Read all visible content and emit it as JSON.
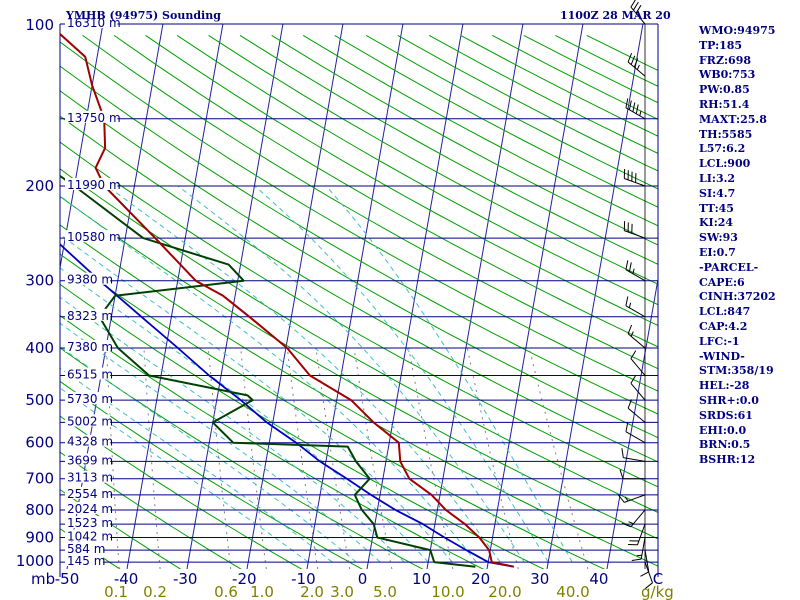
{
  "header": {
    "station_title": "YMHB (94975) Sounding",
    "time_label": "1100Z 28 MAR 20"
  },
  "indices": [
    "WMO:94975",
    "TP:185",
    "FRZ:698",
    "WB0:753",
    "PW:0.85",
    "RH:51.4",
    "MAXT:25.8",
    "TH:5585",
    "L57:6.2",
    "LCL:900",
    "LI:3.2",
    "SI:4.7",
    "TT:45",
    "KI:24",
    "SW:93",
    "EI:0.7",
    "-PARCEL-",
    "CAPE:6",
    "CINH:37202",
    "LCL:847",
    "CAP:4.2",
    "LFC:-1",
    "-WIND-",
    "STM:358/19",
    "HEL:-28",
    "SHR+:0.0",
    "SRDS:61",
    "EHI:0.0",
    "BRN:0.5",
    "BSHR:12"
  ],
  "colors": {
    "isobar": "#000080",
    "isotherm": "#2020a0",
    "dry_adiabat": "#00a000",
    "moist_adiabat": "#40c0c0",
    "mixing_ratio": "#808080",
    "temperature": "#a00000",
    "dewpoint": "#004000",
    "parcel": "#0000c0",
    "wind": "#000000"
  },
  "chart_data": {
    "type": "skew-t",
    "pressure_unit": "mb",
    "temperature_unit": "C",
    "mixing_ratio_unit": "g/kg",
    "pressure_levels": [
      {
        "p": 100,
        "label": "100"
      },
      {
        "p": 200,
        "label": "200"
      },
      {
        "p": 300,
        "label": "300"
      },
      {
        "p": 400,
        "label": "400"
      },
      {
        "p": 500,
        "label": "500"
      },
      {
        "p": 600,
        "label": "600"
      },
      {
        "p": 700,
        "label": "700"
      },
      {
        "p": 800,
        "label": "800"
      },
      {
        "p": 900,
        "label": "900"
      },
      {
        "p": 1000,
        "label": "1000"
      }
    ],
    "height_labels": [
      {
        "p": 100,
        "label": "16310 m"
      },
      {
        "p": 150,
        "label": "13750 m"
      },
      {
        "p": 200,
        "label": "11990 m"
      },
      {
        "p": 250,
        "label": "10580 m"
      },
      {
        "p": 300,
        "label": "9380 m"
      },
      {
        "p": 350,
        "label": "8323 m"
      },
      {
        "p": 400,
        "label": "7380 m"
      },
      {
        "p": 450,
        "label": "6515 m"
      },
      {
        "p": 500,
        "label": "5730 m"
      },
      {
        "p": 550,
        "label": "5002 m"
      },
      {
        "p": 600,
        "label": "4328 m"
      },
      {
        "p": 650,
        "label": "3699 m"
      },
      {
        "p": 700,
        "label": "3113 m"
      },
      {
        "p": 750,
        "label": "2554 m"
      },
      {
        "p": 800,
        "label": "2024 m"
      },
      {
        "p": 850,
        "label": "1523 m"
      },
      {
        "p": 900,
        "label": "1042 m"
      },
      {
        "p": 950,
        "label": "584 m"
      },
      {
        "p": 1000,
        "label": "145 m"
      }
    ],
    "temperature_ticks": [
      "-50",
      "-40",
      "-30",
      "-20",
      "-10",
      "0",
      "10",
      "20",
      "30",
      "40",
      "C"
    ],
    "mixing_ratio_ticks": [
      {
        "value": 0.1,
        "label": "0.1"
      },
      {
        "value": 0.2,
        "label": "0.2"
      },
      {
        "value": 0.6,
        "label": "0.6"
      },
      {
        "value": 1.0,
        "label": "1.0"
      },
      {
        "value": 2.0,
        "label": "2.0"
      },
      {
        "value": 3.0,
        "label": "3.0"
      },
      {
        "value": 5.0,
        "label": "5.0"
      },
      {
        "value": 10.0,
        "label": "10.0"
      },
      {
        "value": 20.0,
        "label": "20.0"
      },
      {
        "value": 40.0,
        "label": "40.0"
      }
    ],
    "temperature_profile": [
      [
        1020,
        24.4
      ],
      [
        1000,
        20.6
      ],
      [
        950,
        19.8
      ],
      [
        900,
        17.8
      ],
      [
        850,
        15.0
      ],
      [
        800,
        11.4
      ],
      [
        750,
        8.6
      ],
      [
        700,
        4.4
      ],
      [
        650,
        2.4
      ],
      [
        600,
        1.6
      ],
      [
        550,
        -3.2
      ],
      [
        500,
        -7.6
      ],
      [
        450,
        -15.2
      ],
      [
        400,
        -19.8
      ],
      [
        350,
        -27.0
      ],
      [
        320,
        -32.0
      ],
      [
        300,
        -37.0
      ],
      [
        250,
        -45.0
      ],
      [
        200,
        -55.0
      ],
      [
        185,
        -57.0
      ],
      [
        170,
        -56.0
      ],
      [
        150,
        -57.0
      ],
      [
        130,
        -60.0
      ],
      [
        115,
        -62.0
      ],
      [
        100,
        -69.0
      ]
    ],
    "dewpoint_profile": [
      [
        1020,
        18.0
      ],
      [
        1000,
        11.0
      ],
      [
        950,
        10.0
      ],
      [
        900,
        0.8
      ],
      [
        850,
        -0.2
      ],
      [
        800,
        -2.6
      ],
      [
        750,
        -4.2
      ],
      [
        700,
        -2.2
      ],
      [
        650,
        -5.0
      ],
      [
        610,
        -6.8
      ],
      [
        600,
        -26.0
      ],
      [
        550,
        -30.0
      ],
      [
        500,
        -24.0
      ],
      [
        490,
        -25.0
      ],
      [
        450,
        -42.0
      ],
      [
        400,
        -48.0
      ],
      [
        350,
        -52.0
      ],
      [
        320,
        -50.0
      ],
      [
        300,
        -29.0
      ],
      [
        280,
        -32.0
      ],
      [
        250,
        -47.0
      ],
      [
        200,
        -60.0
      ],
      [
        150,
        -78.0
      ],
      [
        130,
        -80.0
      ],
      [
        115,
        -83.0
      ],
      [
        100,
        -88.0
      ]
    ],
    "parcel_profile": [
      [
        1020,
        24.4
      ],
      [
        1000,
        20.0
      ],
      [
        950,
        16.0
      ],
      [
        900,
        12.0
      ],
      [
        850,
        8.0
      ],
      [
        800,
        3.0
      ],
      [
        750,
        -1.5
      ],
      [
        700,
        -6.0
      ],
      [
        650,
        -11.0
      ],
      [
        600,
        -15.5
      ],
      [
        550,
        -21.0
      ],
      [
        500,
        -26.0
      ],
      [
        450,
        -32.0
      ],
      [
        400,
        -38.0
      ],
      [
        350,
        -45.0
      ],
      [
        300,
        -53.0
      ],
      [
        250,
        -62.0
      ],
      [
        200,
        -72.0
      ],
      [
        150,
        -84.0
      ],
      [
        125,
        -92.0
      ]
    ],
    "wind_barbs": [
      {
        "p": 1000,
        "dir": 160,
        "kt": 10
      },
      {
        "p": 950,
        "dir": 170,
        "kt": 10
      },
      {
        "p": 900,
        "dir": 190,
        "kt": 15
      },
      {
        "p": 850,
        "dir": 200,
        "kt": 20
      },
      {
        "p": 800,
        "dir": 220,
        "kt": 15
      },
      {
        "p": 750,
        "dir": 250,
        "kt": 15
      },
      {
        "p": 700,
        "dir": 270,
        "kt": 10
      },
      {
        "p": 650,
        "dir": 280,
        "kt": 10
      },
      {
        "p": 600,
        "dir": 300,
        "kt": 10
      },
      {
        "p": 550,
        "dir": 310,
        "kt": 10
      },
      {
        "p": 500,
        "dir": 320,
        "kt": 10
      },
      {
        "p": 450,
        "dir": 320,
        "kt": 10
      },
      {
        "p": 400,
        "dir": 310,
        "kt": 15
      },
      {
        "p": 350,
        "dir": 300,
        "kt": 15
      },
      {
        "p": 300,
        "dir": 300,
        "kt": 25
      },
      {
        "p": 250,
        "dir": 290,
        "kt": 30
      },
      {
        "p": 200,
        "dir": 290,
        "kt": 40
      },
      {
        "p": 150,
        "dir": 300,
        "kt": 45
      },
      {
        "p": 125,
        "dir": 310,
        "kt": 35
      },
      {
        "p": 100,
        "dir": 320,
        "kt": 30
      }
    ]
  }
}
